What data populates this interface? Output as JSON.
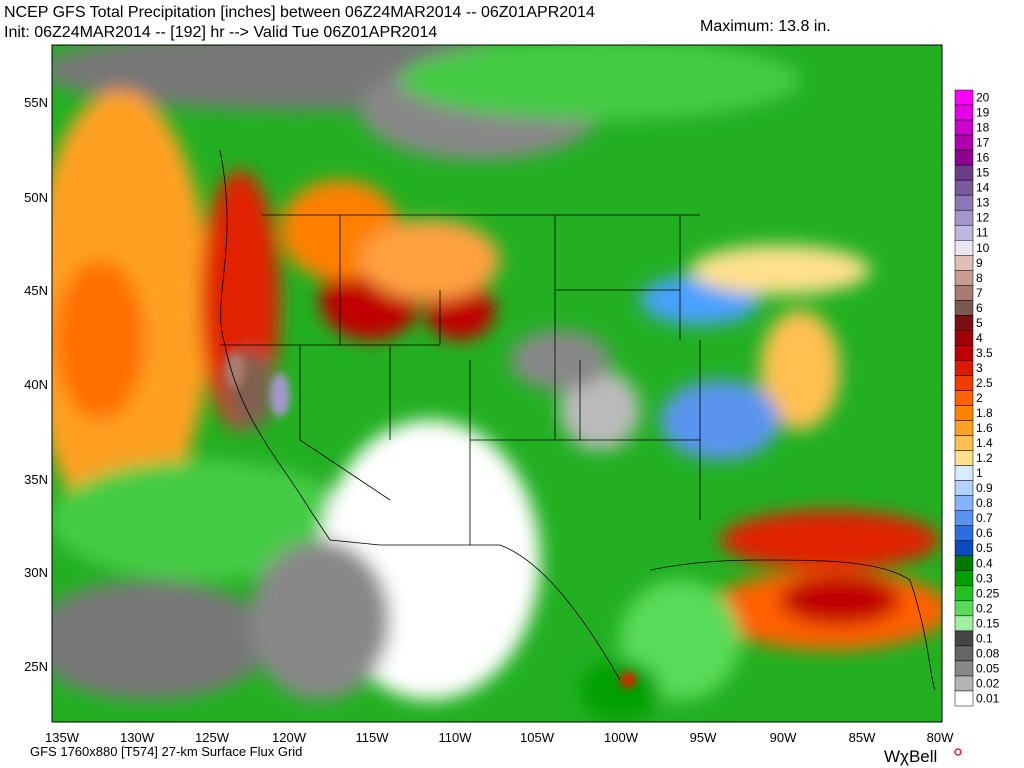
{
  "header": {
    "title": "NCEP GFS Total Precipitation [inches] between 06Z24MAR2014 -- 06Z01APR2014",
    "init": "Init: 06Z24MAR2014 -- [192] hr --> Valid Tue 06Z01APR2014",
    "maximum": "Maximum:  13.8 in."
  },
  "map": {
    "lat_labels": [
      "55N",
      "50N",
      "45N",
      "40N",
      "35N",
      "30N",
      "25N"
    ],
    "lon_labels": [
      "135W",
      "130W",
      "125W",
      "120W",
      "115W",
      "110W",
      "105W",
      "100W",
      "95W",
      "90W",
      "85W",
      "80W"
    ]
  },
  "colorbar": [
    {
      "label": "20",
      "color": "#ff00ff"
    },
    {
      "label": "19",
      "color": "#e600e6"
    },
    {
      "label": "18",
      "color": "#cc00cc"
    },
    {
      "label": "17",
      "color": "#b000b0"
    },
    {
      "label": "16",
      "color": "#900090"
    },
    {
      "label": "15",
      "color": "#6a3d8a"
    },
    {
      "label": "14",
      "color": "#7a5a9e"
    },
    {
      "label": "13",
      "color": "#8c78b8"
    },
    {
      "label": "12",
      "color": "#a496cc"
    },
    {
      "label": "11",
      "color": "#c0b6e0"
    },
    {
      "label": "10",
      "color": "#ece6f2"
    },
    {
      "label": "9",
      "color": "#e0c0b4"
    },
    {
      "label": "8",
      "color": "#c89c90"
    },
    {
      "label": "7",
      "color": "#a87c70"
    },
    {
      "label": "6",
      "color": "#7a5a50"
    },
    {
      "label": "5",
      "color": "#7a1010"
    },
    {
      "label": "4",
      "color": "#a00000"
    },
    {
      "label": "3.5",
      "color": "#c00000"
    },
    {
      "label": "3",
      "color": "#dc1a00"
    },
    {
      "label": "2.5",
      "color": "#f03c00"
    },
    {
      "label": "2",
      "color": "#ff6000"
    },
    {
      "label": "1.8",
      "color": "#ff8200"
    },
    {
      "label": "1.6",
      "color": "#ffa020"
    },
    {
      "label": "1.4",
      "color": "#ffc050"
    },
    {
      "label": "1.2",
      "color": "#ffe08c"
    },
    {
      "label": "1",
      "color": "#d8ecff"
    },
    {
      "label": "0.9",
      "color": "#b0d4ff"
    },
    {
      "label": "0.8",
      "color": "#84b4ff"
    },
    {
      "label": "0.7",
      "color": "#5a94f0"
    },
    {
      "label": "0.6",
      "color": "#2c6ee0"
    },
    {
      "label": "0.5",
      "color": "#0a4cc0"
    },
    {
      "label": "0.4",
      "color": "#007a00"
    },
    {
      "label": "0.3",
      "color": "#00a000"
    },
    {
      "label": "0.25",
      "color": "#22c022"
    },
    {
      "label": "0.2",
      "color": "#5ada5a"
    },
    {
      "label": "0.15",
      "color": "#a0f0a0"
    },
    {
      "label": "0.1",
      "color": "#444444"
    },
    {
      "label": "0.08",
      "color": "#666666"
    },
    {
      "label": "0.05",
      "color": "#888888"
    },
    {
      "label": "0.02",
      "color": "#b4b4b4"
    },
    {
      "label": "0.01",
      "color": "#ffffff"
    }
  ],
  "footer": {
    "grid": "GFS 1760x880 [T574] 27-km Surface Flux Grid",
    "logo": "WχBell"
  }
}
